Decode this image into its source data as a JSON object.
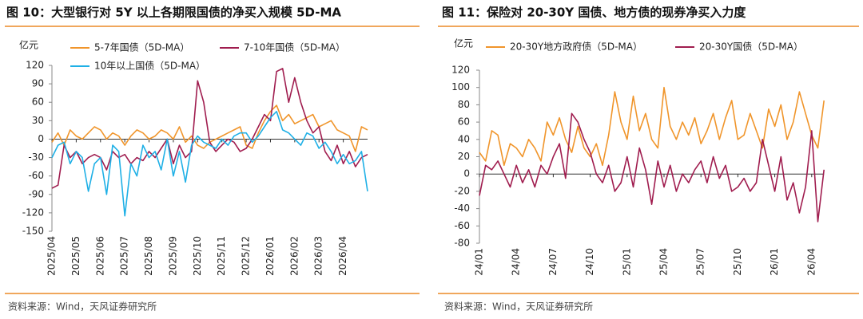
{
  "chart_data": [
    {
      "type": "line",
      "title": "图 10：大型银行对 5Y 以上各期限国债的净买入规模 5D-MA",
      "unit": "亿元",
      "source": "资料来源：Wind，天风证券研究所",
      "categories": [
        "2025/04",
        null,
        null,
        null,
        "2025/05",
        null,
        null,
        null,
        "2025/06",
        null,
        null,
        null,
        "2025/07",
        null,
        null,
        null,
        "2025/08",
        null,
        null,
        null,
        "2025/09",
        null,
        null,
        null,
        "2025/10",
        null,
        null,
        null,
        "2025/11",
        null,
        null,
        null,
        "2025/12",
        null,
        null,
        null,
        "2026/01",
        null,
        null,
        null,
        "2026/02",
        null,
        null,
        null,
        "2026/03",
        null,
        null,
        null,
        "2026/04",
        null,
        null,
        null,
        null
      ],
      "ylim": [
        -150,
        120
      ],
      "yticks": [
        -150,
        -120,
        -90,
        -60,
        -30,
        0,
        30,
        60,
        90,
        120
      ],
      "series": [
        {
          "name": "5-7年国债（5D-MA）",
          "color": "#f0952b",
          "values": [
            -5,
            10,
            -10,
            15,
            5,
            0,
            10,
            20,
            15,
            0,
            10,
            5,
            -10,
            5,
            15,
            10,
            0,
            5,
            15,
            10,
            0,
            20,
            -5,
            5,
            -10,
            -15,
            -5,
            0,
            5,
            10,
            15,
            20,
            -10,
            -15,
            10,
            30,
            45,
            55,
            30,
            40,
            25,
            30,
            35,
            40,
            20,
            25,
            30,
            15,
            10,
            5,
            -20,
            20,
            15
          ]
        },
        {
          "name": "7-10年国债（5D-MA）",
          "color": "#a01d4f",
          "values": [
            -80,
            -75,
            -10,
            -30,
            -20,
            -40,
            -30,
            -25,
            -30,
            -50,
            -20,
            -30,
            -25,
            -40,
            -30,
            -35,
            -20,
            -30,
            -15,
            0,
            -40,
            -10,
            -30,
            -20,
            95,
            60,
            -5,
            -20,
            -10,
            0,
            -5,
            -20,
            -15,
            0,
            20,
            40,
            30,
            110,
            115,
            60,
            100,
            60,
            30,
            10,
            20,
            -20,
            -35,
            -10,
            -40,
            -20,
            -45,
            -30,
            -25
          ]
        },
        {
          "name": "10年以上国债（5D-MA）",
          "color": "#1fb0e6",
          "values": [
            -30,
            -10,
            -5,
            -40,
            -20,
            -30,
            -85,
            -40,
            -30,
            -90,
            -10,
            -20,
            -125,
            -40,
            -60,
            -10,
            -30,
            -20,
            -50,
            0,
            -60,
            -20,
            -70,
            -10,
            5,
            -5,
            -10,
            -15,
            0,
            -10,
            5,
            10,
            10,
            -5,
            5,
            20,
            35,
            45,
            15,
            10,
            0,
            -10,
            10,
            5,
            -15,
            -5,
            -20,
            -40,
            -25,
            -40,
            -35,
            -20,
            -85
          ]
        }
      ]
    },
    {
      "type": "line",
      "title": "图 11：保险对 20-30Y 国债、地方债的现券净买入力度",
      "unit": "亿元",
      "source": "资料来源：Wind，天风证券研究所",
      "categories": [
        "24/01",
        null,
        null,
        null,
        null,
        null,
        "24/04",
        null,
        null,
        null,
        null,
        null,
        "24/07",
        null,
        null,
        null,
        null,
        null,
        "24/10",
        null,
        null,
        null,
        null,
        null,
        "25/01",
        null,
        null,
        null,
        null,
        null,
        "25/04",
        null,
        null,
        null,
        null,
        null,
        "25/07",
        null,
        null,
        null,
        null,
        null,
        "25/10",
        null,
        null,
        null,
        null,
        null,
        "26/01",
        null,
        null,
        null,
        null,
        null,
        "26/04",
        null,
        null
      ],
      "ylim": [
        -80,
        120
      ],
      "yticks": [
        -80,
        -60,
        -40,
        -20,
        0,
        20,
        40,
        60,
        80,
        100,
        120
      ],
      "series": [
        {
          "name": "20-30Y地方政府债（5D-MA）",
          "color": "#f0952b",
          "values": [
            25,
            15,
            50,
            45,
            10,
            35,
            30,
            20,
            40,
            30,
            15,
            60,
            45,
            65,
            40,
            25,
            55,
            30,
            20,
            35,
            10,
            45,
            95,
            60,
            40,
            90,
            50,
            70,
            40,
            30,
            100,
            55,
            40,
            60,
            45,
            65,
            35,
            50,
            70,
            40,
            65,
            85,
            40,
            45,
            70,
            50,
            30,
            75,
            55,
            80,
            40,
            60,
            95,
            70,
            45,
            30,
            85
          ]
        },
        {
          "name": "20-30Y国债（5D-MA）",
          "color": "#a01d4f",
          "values": [
            -25,
            10,
            5,
            15,
            0,
            -15,
            10,
            -10,
            5,
            -15,
            10,
            0,
            20,
            35,
            -5,
            70,
            60,
            40,
            25,
            0,
            -10,
            10,
            -20,
            -10,
            20,
            -15,
            30,
            5,
            -35,
            15,
            -15,
            10,
            -20,
            0,
            -10,
            5,
            15,
            -10,
            20,
            -5,
            10,
            -20,
            -15,
            -5,
            -20,
            -10,
            40,
            10,
            -20,
            20,
            -30,
            -10,
            -45,
            -15,
            50,
            -55,
            5
          ]
        }
      ]
    }
  ]
}
